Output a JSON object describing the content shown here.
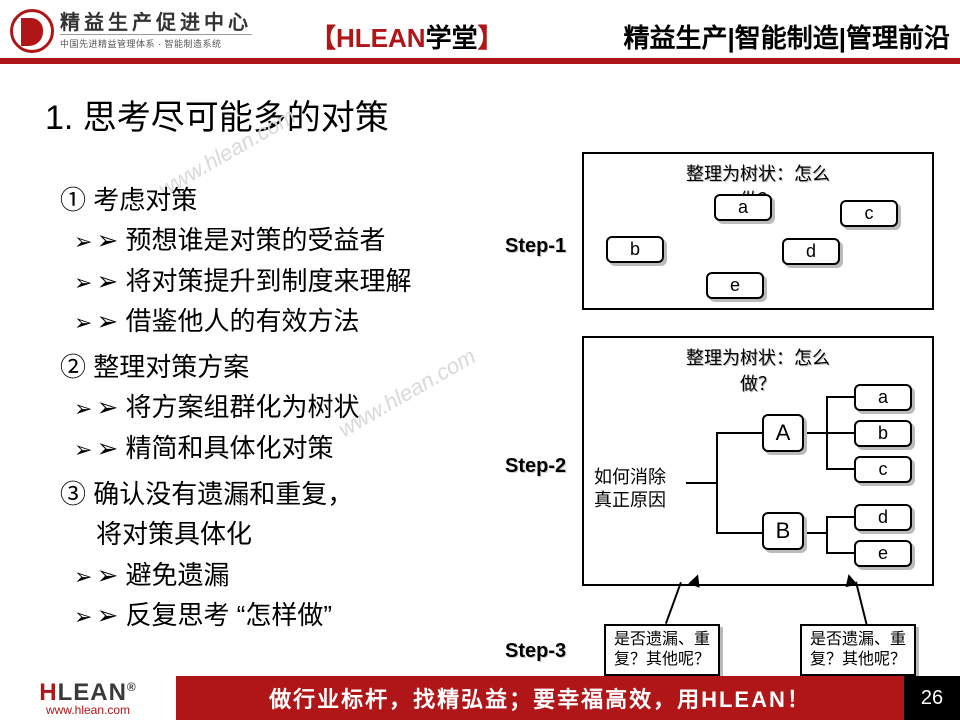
{
  "header": {
    "org_name": "精益生产促进中心",
    "org_sub": "中国先进精益管理体系 · 智能制造系统",
    "center_open": "【",
    "center_brand": "HLEAN",
    "center_suffix": "学堂",
    "center_close": "】",
    "right": "精益生产|智能制造|管理前沿"
  },
  "title": "1. 思考尽可能多的对策",
  "outline": {
    "s1": {
      "head": "① 考虑对策",
      "b1": "预想谁是对策的受益者",
      "b2": "将对策提升到制度来理解",
      "b3": "借鉴他人的有效方法"
    },
    "s2": {
      "head": "② 整理对策方案",
      "b1": "将方案组群化为树状",
      "b2": "精简和具体化对策"
    },
    "s3": {
      "head": "③ 确认没有遗漏和重复，",
      "line2": "将对策具体化",
      "b1": "避免遗漏",
      "b2": "反复思考 “怎样做”"
    }
  },
  "steps": {
    "s1": "Step-1",
    "s2": "Step-2",
    "s3": "Step-3"
  },
  "panel1": {
    "title": "整理为树状：怎么做？",
    "nodes": {
      "a": "a",
      "b": "b",
      "c": "c",
      "d": "d",
      "e": "e"
    }
  },
  "panel2": {
    "title": "整理为树状：怎么做？",
    "root_text1": "如何消除",
    "root_text2": "真正原因",
    "A": "A",
    "B": "B",
    "leaves": {
      "a": "a",
      "b": "b",
      "c": "c",
      "d": "d",
      "e": "e"
    }
  },
  "callouts": {
    "c1a": "是否遗漏、重",
    "c1b": "复？其他呢？",
    "c2a": "是否遗漏、重",
    "c2b": "复？其他呢？"
  },
  "watermark": "www.hlean.com",
  "footer": {
    "brand_h": "H",
    "brand_rest": "LEAN",
    "brand_dot": "®",
    "url": "www.hlean.com",
    "slogan": "做行业标杆，找精弘益；要幸福高效，用HLEAN！",
    "page": "26"
  },
  "colors": {
    "brand_red": "#b01517",
    "text": "#000000",
    "shadow": "#bbbbbb"
  }
}
